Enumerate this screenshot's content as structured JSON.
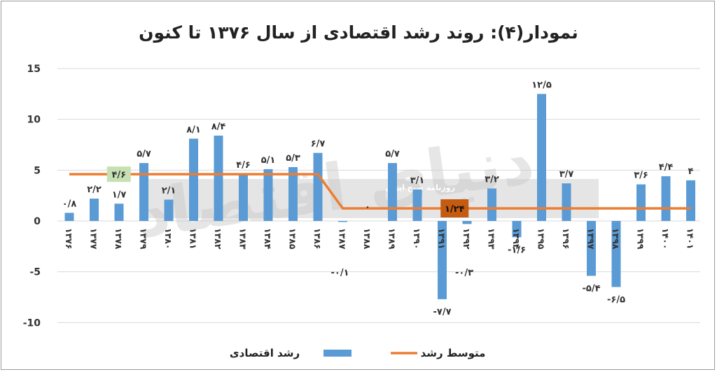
{
  "chart_data": {
    "type": "bar",
    "title": "نمودار(۴): روند رشد اقتصادی از سال ۱۳۷۶ تا کنون",
    "categories": [
      "۱۳۷۶",
      "۱۳۷۷",
      "۱۳۷۸",
      "۱۳۷۹",
      "۱۳۸۰",
      "۱۳۸۱",
      "۱۳۸۲",
      "۱۳۸۳",
      "۱۳۸۴",
      "۱۳۸۵",
      "۱۳۸۶",
      "۱۳۸۷",
      "۱۳۸۸",
      "۱۳۸۹",
      "۱۳۹۰",
      "۱۳۹۱",
      "۱۳۹۲",
      "۱۳۹۳",
      "۱۳۹۴",
      "۱۳۹۵",
      "۱۳۹۶",
      "۱۳۹۷",
      "۱۳۹۸",
      "۱۳۹۹",
      "۱۴۰۰",
      "۱۴۰۱"
    ],
    "series": [
      {
        "name": "رشد اقتصادی",
        "color": "#5b9bd5",
        "values": [
          0.8,
          2.2,
          1.7,
          5.7,
          2.1,
          8.1,
          8.4,
          4.6,
          5.1,
          5.3,
          6.7,
          -0.1,
          0,
          5.7,
          3.1,
          -7.7,
          -0.3,
          3.2,
          -1.6,
          12.5,
          3.7,
          -5.4,
          -6.5,
          3.6,
          4.4,
          4
        ],
        "labels": [
          "۰/۸",
          "۲/۲",
          "۱/۷",
          "۵/۷",
          "۲/۱",
          "۸/۱",
          "۸/۴",
          "۴/۶",
          "۵/۱",
          "۵/۳",
          "۶/۷",
          "-۰/۱",
          "۰",
          "۵/۷",
          "۳/۱",
          "-۷/۷",
          "-۰/۳",
          "۳/۲",
          "-۱/۶",
          "۱۲/۵",
          "۳/۷",
          "-۵/۴",
          "-۶/۵",
          "۳/۶",
          "۴/۴",
          "۴"
        ]
      },
      {
        "name": "متوسط رشد",
        "color": "#ed7d31",
        "type": "line",
        "segments": [
          {
            "from": "۱۳۷۶",
            "to": "۱۳۸۶",
            "value": 4.6,
            "label": "۴/۶"
          },
          {
            "from": "۱۳۸۷",
            "to": "۱۴۰۱",
            "value": 1.24,
            "label": "۱/۲۴"
          }
        ]
      }
    ],
    "yticks": [
      {
        "value": 15,
        "label": "15"
      },
      {
        "value": 10,
        "label": "10"
      },
      {
        "value": 5,
        "label": "5"
      },
      {
        "value": 0,
        "label": "0"
      },
      {
        "value": -5,
        "label": "-5"
      },
      {
        "value": -10,
        "label": "-10"
      }
    ],
    "ylim": [
      -10,
      15
    ],
    "grid": true,
    "legend_position": "bottom"
  },
  "watermark": {
    "main": "دنیای اقتصاد",
    "sub": "روزنامه صبح ایران"
  }
}
